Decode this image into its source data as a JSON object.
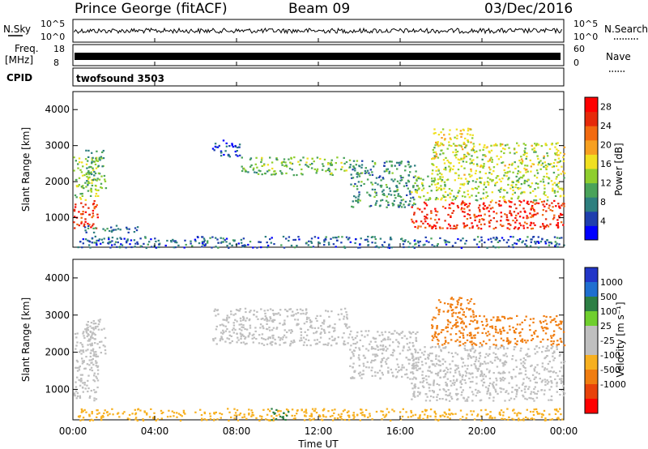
{
  "header": {
    "station": "Prince George (fitACF)",
    "beam": "Beam 09",
    "date": "03/Dec/2016"
  },
  "top_panels": {
    "nsky_label": "N.Sky",
    "nsearch_label": "N.Search",
    "noise_left_ticks": [
      "10^5",
      "10^0"
    ],
    "noise_right_ticks": [
      "10^5",
      "10^0"
    ],
    "freq_label_line1": "Freq.",
    "freq_label_line2": "[MHz]",
    "freq_ticks": [
      "18",
      "8"
    ],
    "nave_label": "Nave",
    "nave_ticks": [
      "60",
      "0"
    ],
    "cpid_label": "CPID",
    "cpid_value": "twofsound 3503"
  },
  "colors": {
    "power_scale": [
      "#0000ff",
      "#1f3fae",
      "#2e7f7f",
      "#4aa35a",
      "#8fce2e",
      "#f0e020",
      "#f7a020",
      "#f26a10",
      "#e62a0a",
      "#ff0000"
    ],
    "velocity_scale": [
      "#2236c8",
      "#1f6fd0",
      "#2d7f44",
      "#6fcf2e",
      "#bfbfbf",
      "#bfbfbf",
      "#f7b020",
      "#f07d10",
      "#e8420a",
      "#ff0000"
    ]
  },
  "chart_data": [
    {
      "type": "heatmap",
      "name": "power",
      "ylabel": "Slant Range [km]",
      "xlabel": "Time UT",
      "x_ticks": [
        "00:00",
        "04:00",
        "08:00",
        "12:00",
        "16:00",
        "20:00",
        "00:00"
      ],
      "y_ticks": [
        1000,
        2000,
        3000,
        4000
      ],
      "ylim": [
        180,
        4500
      ],
      "xlim_hours": [
        0,
        24
      ],
      "colorbar": {
        "label": "Power [dB]",
        "ticks": [
          4,
          8,
          12,
          16,
          20,
          24,
          28
        ],
        "range": [
          0,
          30
        ]
      },
      "regions": [
        {
          "t": [
            0.0,
            1.2
          ],
          "r": [
            700,
            1500
          ],
          "v": 26
        },
        {
          "t": [
            0.0,
            1.2
          ],
          "r": [
            1500,
            2700
          ],
          "v": 14
        },
        {
          "t": [
            0.6,
            1.6
          ],
          "r": [
            1800,
            2900
          ],
          "v": 10
        },
        {
          "t": [
            0.4,
            3.2
          ],
          "r": [
            600,
            800
          ],
          "v": 7
        },
        {
          "t": [
            6.8,
            8.2
          ],
          "r": [
            2700,
            3200
          ],
          "v": 5
        },
        {
          "t": [
            8.2,
            13.5
          ],
          "r": [
            2200,
            2700
          ],
          "v": 12
        },
        {
          "t": [
            13.5,
            16.8
          ],
          "r": [
            1300,
            2600
          ],
          "v": 9
        },
        {
          "t": [
            16.5,
            24.0
          ],
          "r": [
            700,
            1500
          ],
          "v": 26
        },
        {
          "t": [
            16.5,
            24.0
          ],
          "r": [
            1500,
            2200
          ],
          "v": 14
        },
        {
          "t": [
            17.5,
            24.0
          ],
          "r": [
            2200,
            3100
          ],
          "v": 15
        },
        {
          "t": [
            17.6,
            19.6
          ],
          "r": [
            3000,
            3500
          ],
          "v": 16
        },
        {
          "t": [
            0.2,
            24.0
          ],
          "r": [
            180,
            500
          ],
          "v": 6
        }
      ]
    },
    {
      "type": "heatmap",
      "name": "velocity",
      "ylabel": "Slant Range [km]",
      "xlabel": "Time UT",
      "x_ticks": [
        "00:00",
        "04:00",
        "08:00",
        "12:00",
        "16:00",
        "20:00",
        "00:00"
      ],
      "y_ticks": [
        1000,
        2000,
        3000,
        4000
      ],
      "ylim": [
        180,
        4500
      ],
      "xlim_hours": [
        0,
        24
      ],
      "colorbar": {
        "label": "Velocity [m s⁻¹]",
        "ticks": [
          "1000",
          "500",
          "100",
          "25",
          "-25",
          "-100",
          "-500",
          "-1000"
        ]
      },
      "regions": [
        {
          "t": [
            0.0,
            1.2
          ],
          "r": [
            700,
            2700
          ],
          "v": 0
        },
        {
          "t": [
            0.6,
            1.6
          ],
          "r": [
            1800,
            2900
          ],
          "v": 0
        },
        {
          "t": [
            6.8,
            13.5
          ],
          "r": [
            2200,
            3200
          ],
          "v": 0
        },
        {
          "t": [
            13.5,
            16.8
          ],
          "r": [
            1300,
            2600
          ],
          "v": 0
        },
        {
          "t": [
            16.5,
            24.0
          ],
          "r": [
            700,
            2200
          ],
          "v": 0
        },
        {
          "t": [
            17.5,
            24.0
          ],
          "r": [
            2200,
            3000
          ],
          "v": -150
        },
        {
          "t": [
            17.6,
            19.6
          ],
          "r": [
            3000,
            3500
          ],
          "v": -300
        },
        {
          "t": [
            0.2,
            24.0
          ],
          "r": [
            180,
            500
          ],
          "v": -60
        },
        {
          "t": [
            9.6,
            10.6
          ],
          "r": [
            200,
            500
          ],
          "v": 150
        }
      ]
    }
  ]
}
